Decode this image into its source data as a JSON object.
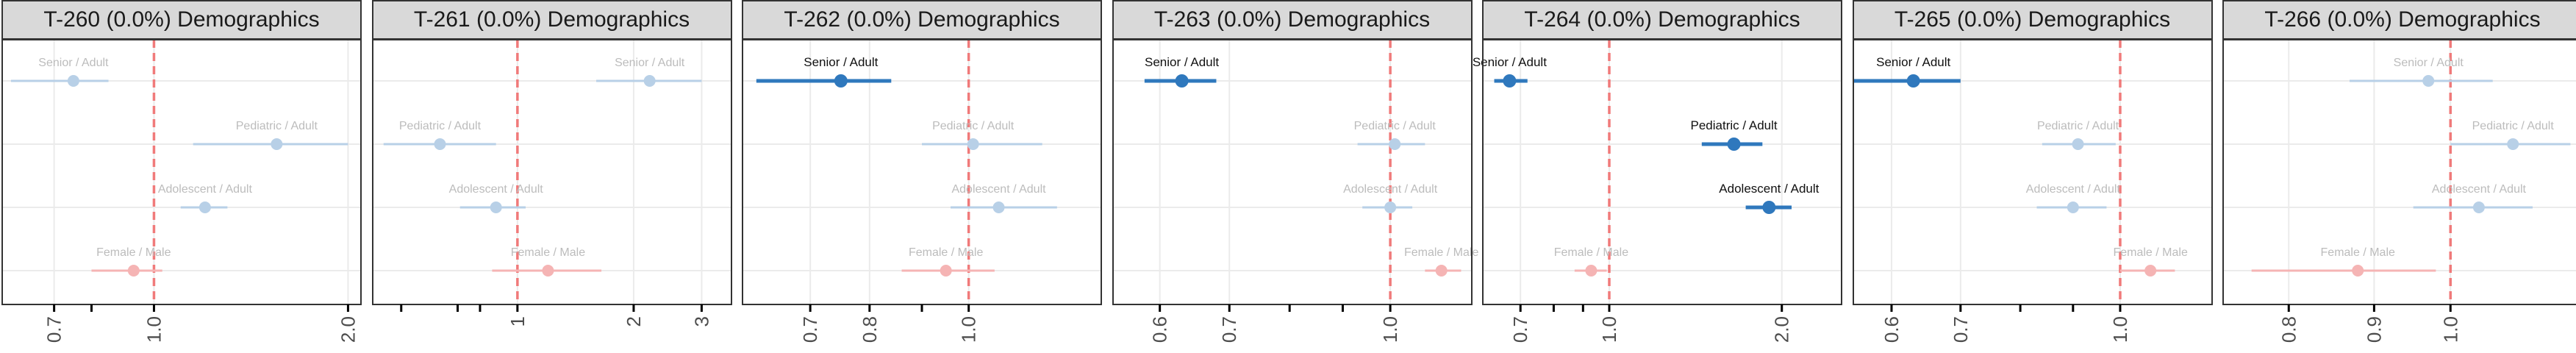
{
  "colors": {
    "blue": "#2f78bd",
    "blue_faded": "#b8d0e7",
    "red": "#f08080",
    "red_faded": "#f5b4b4",
    "ref_line": "#f07a7a",
    "label_faded": "#bcbcbc",
    "label_dark": "#111111",
    "grid": "#ebebeb",
    "strip_bg": "#d9d9d9",
    "border": "#333333"
  },
  "chart_data": [
    {
      "type": "forest",
      "title": "T-260 (0.0%) Demographics",
      "scale": "log",
      "xlim": [
        0.58,
        2.1
      ],
      "ticks": [
        0.7,
        1.0,
        2.0
      ],
      "tick_labels": [
        "0.7",
        "1.0",
        "2.0"
      ],
      "minor_ticks": [
        0.8
      ],
      "reference": 1.0,
      "rows": [
        {
          "label": "Senior / Adult",
          "estimate": 0.75,
          "lower": 0.6,
          "upper": 0.85,
          "color": "blue",
          "highlight": false
        },
        {
          "label": "Pediatric / Adult",
          "estimate": 1.55,
          "lower": 1.15,
          "upper": 2.0,
          "color": "blue",
          "highlight": false
        },
        {
          "label": "Adolescent / Adult",
          "estimate": 1.2,
          "lower": 1.1,
          "upper": 1.3,
          "color": "blue",
          "highlight": false
        },
        {
          "label": "Female / Male",
          "estimate": 0.93,
          "lower": 0.8,
          "upper": 1.03,
          "color": "red",
          "highlight": false
        }
      ]
    },
    {
      "type": "forest",
      "title": "T-261 (0.0%) Demographics",
      "scale": "log",
      "xlim": [
        0.42,
        3.6
      ],
      "ticks": [
        1,
        2,
        3
      ],
      "tick_labels": [
        "1",
        "2",
        "3"
      ],
      "minor_ticks": [
        0.5,
        0.7,
        0.8
      ],
      "reference": 1.0,
      "rows": [
        {
          "label": "Senior / Adult",
          "estimate": 2.2,
          "lower": 1.6,
          "upper": 3.0,
          "color": "blue",
          "highlight": false
        },
        {
          "label": "Pediatric / Adult",
          "estimate": 0.63,
          "lower": 0.45,
          "upper": 0.88,
          "color": "blue",
          "highlight": false
        },
        {
          "label": "Adolescent / Adult",
          "estimate": 0.88,
          "lower": 0.71,
          "upper": 1.05,
          "color": "blue",
          "highlight": false
        },
        {
          "label": "Female / Male",
          "estimate": 1.2,
          "lower": 0.86,
          "upper": 1.65,
          "color": "red",
          "highlight": false
        }
      ]
    },
    {
      "type": "forest",
      "title": "T-262 (0.0%) Demographics",
      "scale": "log",
      "xlim": [
        0.6,
        1.35
      ],
      "ticks": [
        0.7,
        0.8,
        1.0
      ],
      "tick_labels": [
        "0.7",
        "0.8",
        "1.0"
      ],
      "minor_ticks": [
        0.9
      ],
      "reference": 1.0,
      "rows": [
        {
          "label": "Senior / Adult",
          "estimate": 0.75,
          "lower": 0.62,
          "upper": 0.84,
          "color": "blue",
          "highlight": true
        },
        {
          "label": "Pediatric / Adult",
          "estimate": 1.01,
          "lower": 0.9,
          "upper": 1.18,
          "color": "blue",
          "highlight": false
        },
        {
          "label": "Adolescent / Adult",
          "estimate": 1.07,
          "lower": 0.96,
          "upper": 1.22,
          "color": "blue",
          "highlight": false
        },
        {
          "label": "Female / Male",
          "estimate": 0.95,
          "lower": 0.86,
          "upper": 1.06,
          "color": "red",
          "highlight": false
        }
      ]
    },
    {
      "type": "forest",
      "title": "T-263 (0.0%) Demographics",
      "scale": "log",
      "xlim": [
        0.54,
        1.2
      ],
      "ticks": [
        0.6,
        0.7,
        1.0
      ],
      "tick_labels": [
        "0.6",
        "0.7",
        "1.0"
      ],
      "minor_ticks": [
        0.8,
        0.9
      ],
      "reference": 1.0,
      "rows": [
        {
          "label": "Senior / Adult",
          "estimate": 0.63,
          "lower": 0.58,
          "upper": 0.68,
          "color": "blue",
          "highlight": true
        },
        {
          "label": "Pediatric / Adult",
          "estimate": 1.01,
          "lower": 0.93,
          "upper": 1.08,
          "color": "blue",
          "highlight": false
        },
        {
          "label": "Adolescent / Adult",
          "estimate": 1.0,
          "lower": 0.94,
          "upper": 1.05,
          "color": "blue",
          "highlight": false
        },
        {
          "label": "Female / Male",
          "estimate": 1.12,
          "lower": 1.08,
          "upper": 1.17,
          "color": "red",
          "highlight": false
        }
      ]
    },
    {
      "type": "forest",
      "title": "T-264 (0.0%) Demographics",
      "scale": "log",
      "xlim": [
        0.6,
        2.55
      ],
      "ticks": [
        0.7,
        1.0,
        2.0
      ],
      "tick_labels": [
        "0.7",
        "1.0",
        "2.0"
      ],
      "minor_ticks": [
        0.8,
        0.9
      ],
      "reference": 1.0,
      "rows": [
        {
          "label": "Senior / Adult",
          "estimate": 0.67,
          "lower": 0.63,
          "upper": 0.72,
          "color": "blue",
          "highlight": true
        },
        {
          "label": "Pediatric / Adult",
          "estimate": 1.65,
          "lower": 1.45,
          "upper": 1.85,
          "color": "blue",
          "highlight": true
        },
        {
          "label": "Adolescent / Adult",
          "estimate": 1.9,
          "lower": 1.73,
          "upper": 2.08,
          "color": "blue",
          "highlight": true
        },
        {
          "label": "Female / Male",
          "estimate": 0.93,
          "lower": 0.87,
          "upper": 0.99,
          "color": "red",
          "highlight": false
        }
      ]
    },
    {
      "type": "forest",
      "title": "T-265 (0.0%) Demographics",
      "scale": "log",
      "xlim": [
        0.55,
        1.23
      ],
      "ticks": [
        0.6,
        0.7,
        1.0
      ],
      "tick_labels": [
        "0.6",
        "0.7",
        "1.0"
      ],
      "minor_ticks": [
        0.8,
        0.9
      ],
      "reference": 1.0,
      "rows": [
        {
          "label": "Senior / Adult",
          "estimate": 0.63,
          "lower": 0.55,
          "upper": 0.7,
          "color": "blue",
          "highlight": true
        },
        {
          "label": "Pediatric / Adult",
          "estimate": 0.91,
          "lower": 0.84,
          "upper": 0.99,
          "color": "blue",
          "highlight": false
        },
        {
          "label": "Adolescent / Adult",
          "estimate": 0.9,
          "lower": 0.83,
          "upper": 0.97,
          "color": "blue",
          "highlight": false
        },
        {
          "label": "Female / Male",
          "estimate": 1.07,
          "lower": 1.0,
          "upper": 1.13,
          "color": "red",
          "highlight": false
        }
      ]
    },
    {
      "type": "forest",
      "title": "T-266 (0.0%) Demographics",
      "scale": "log",
      "xlim": [
        0.73,
        1.2
      ],
      "ticks": [
        0.8,
        0.9,
        1.0
      ],
      "tick_labels": [
        "0.8",
        "0.9",
        "1.0"
      ],
      "minor_ticks": [],
      "reference": 1.0,
      "rows": [
        {
          "label": "Senior / Adult",
          "estimate": 0.97,
          "lower": 0.87,
          "upper": 1.06,
          "color": "blue",
          "highlight": false
        },
        {
          "label": "Pediatric / Adult",
          "estimate": 1.09,
          "lower": 1.0,
          "upper": 1.18,
          "color": "blue",
          "highlight": false
        },
        {
          "label": "Adolescent / Adult",
          "estimate": 1.04,
          "lower": 0.95,
          "upper": 1.12,
          "color": "blue",
          "highlight": false
        },
        {
          "label": "Female / Male",
          "estimate": 0.88,
          "lower": 0.76,
          "upper": 0.98,
          "color": "red",
          "highlight": false
        }
      ]
    }
  ]
}
